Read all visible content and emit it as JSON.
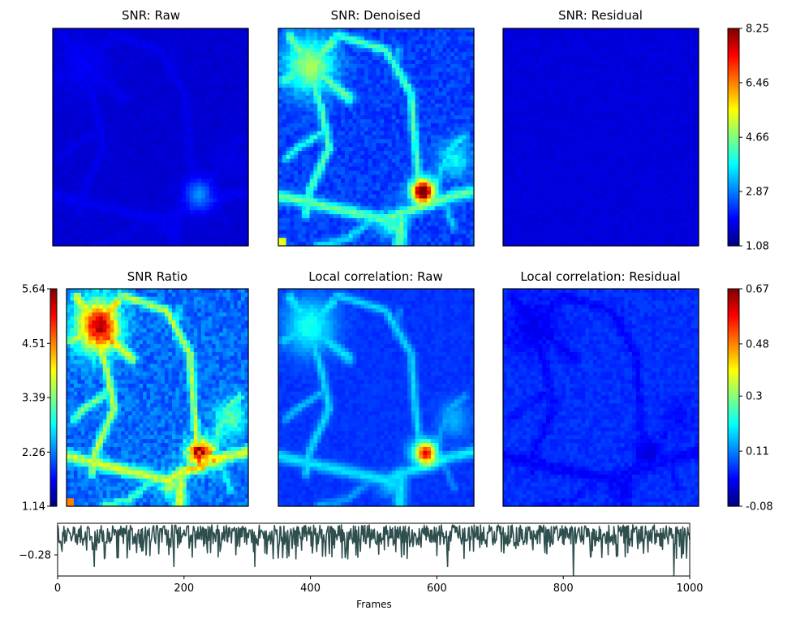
{
  "chart_data": [
    {
      "type": "heatmap",
      "title": "SNR: Raw",
      "xlabel": "",
      "ylabel": "",
      "grid": false,
      "colormap": "jet",
      "clim": [
        1.08,
        8.25
      ],
      "pattern": "raw"
    },
    {
      "type": "heatmap",
      "title": "SNR: Denoised",
      "xlabel": "",
      "ylabel": "",
      "grid": false,
      "colormap": "jet",
      "clim": [
        1.08,
        8.25
      ],
      "pattern": "denoised"
    },
    {
      "type": "heatmap",
      "title": "SNR: Residual",
      "xlabel": "",
      "ylabel": "",
      "grid": false,
      "colormap": "jet",
      "clim": [
        1.08,
        8.25
      ],
      "pattern": "residual",
      "colorbar": {
        "side": "right",
        "ticks": [
          "1.08",
          "2.87",
          "4.66",
          "6.46",
          "8.25"
        ],
        "values": [
          1.08,
          2.87,
          4.66,
          6.46,
          8.25
        ]
      }
    },
    {
      "type": "heatmap",
      "title": "SNR Ratio",
      "xlabel": "",
      "ylabel": "",
      "grid": false,
      "colormap": "jet",
      "clim": [
        1.14,
        5.64
      ],
      "pattern": "ratio",
      "colorbar": {
        "side": "left",
        "ticks": [
          "1.14",
          "2.26",
          "3.39",
          "4.51",
          "5.64"
        ],
        "values": [
          1.14,
          2.26,
          3.39,
          4.51,
          5.64
        ]
      }
    },
    {
      "type": "heatmap",
      "title": "Local correlation: Raw",
      "xlabel": "",
      "ylabel": "",
      "grid": false,
      "colormap": "jet",
      "clim": [
        -0.08,
        0.67
      ],
      "pattern": "corr_raw"
    },
    {
      "type": "heatmap",
      "title": "Local correlation: Residual",
      "xlabel": "",
      "ylabel": "",
      "grid": false,
      "colormap": "jet",
      "clim": [
        -0.08,
        0.67
      ],
      "pattern": "corr_res",
      "colorbar": {
        "side": "right",
        "ticks": [
          "-0.08",
          "0.11",
          "0.3",
          "0.48",
          "0.67"
        ],
        "values": [
          -0.08,
          0.11,
          0.3,
          0.48,
          0.67
        ]
      }
    },
    {
      "type": "line",
      "title": "",
      "xlabel": "Frames",
      "ylabel": "",
      "xlim": [
        0,
        1000
      ],
      "xticks": [
        0,
        200,
        400,
        600,
        800,
        1000
      ],
      "ytick": "−0.28",
      "ytick_value": -0.28,
      "grid": false,
      "series_color": "#2f4f4f",
      "frames": 1000
    }
  ]
}
